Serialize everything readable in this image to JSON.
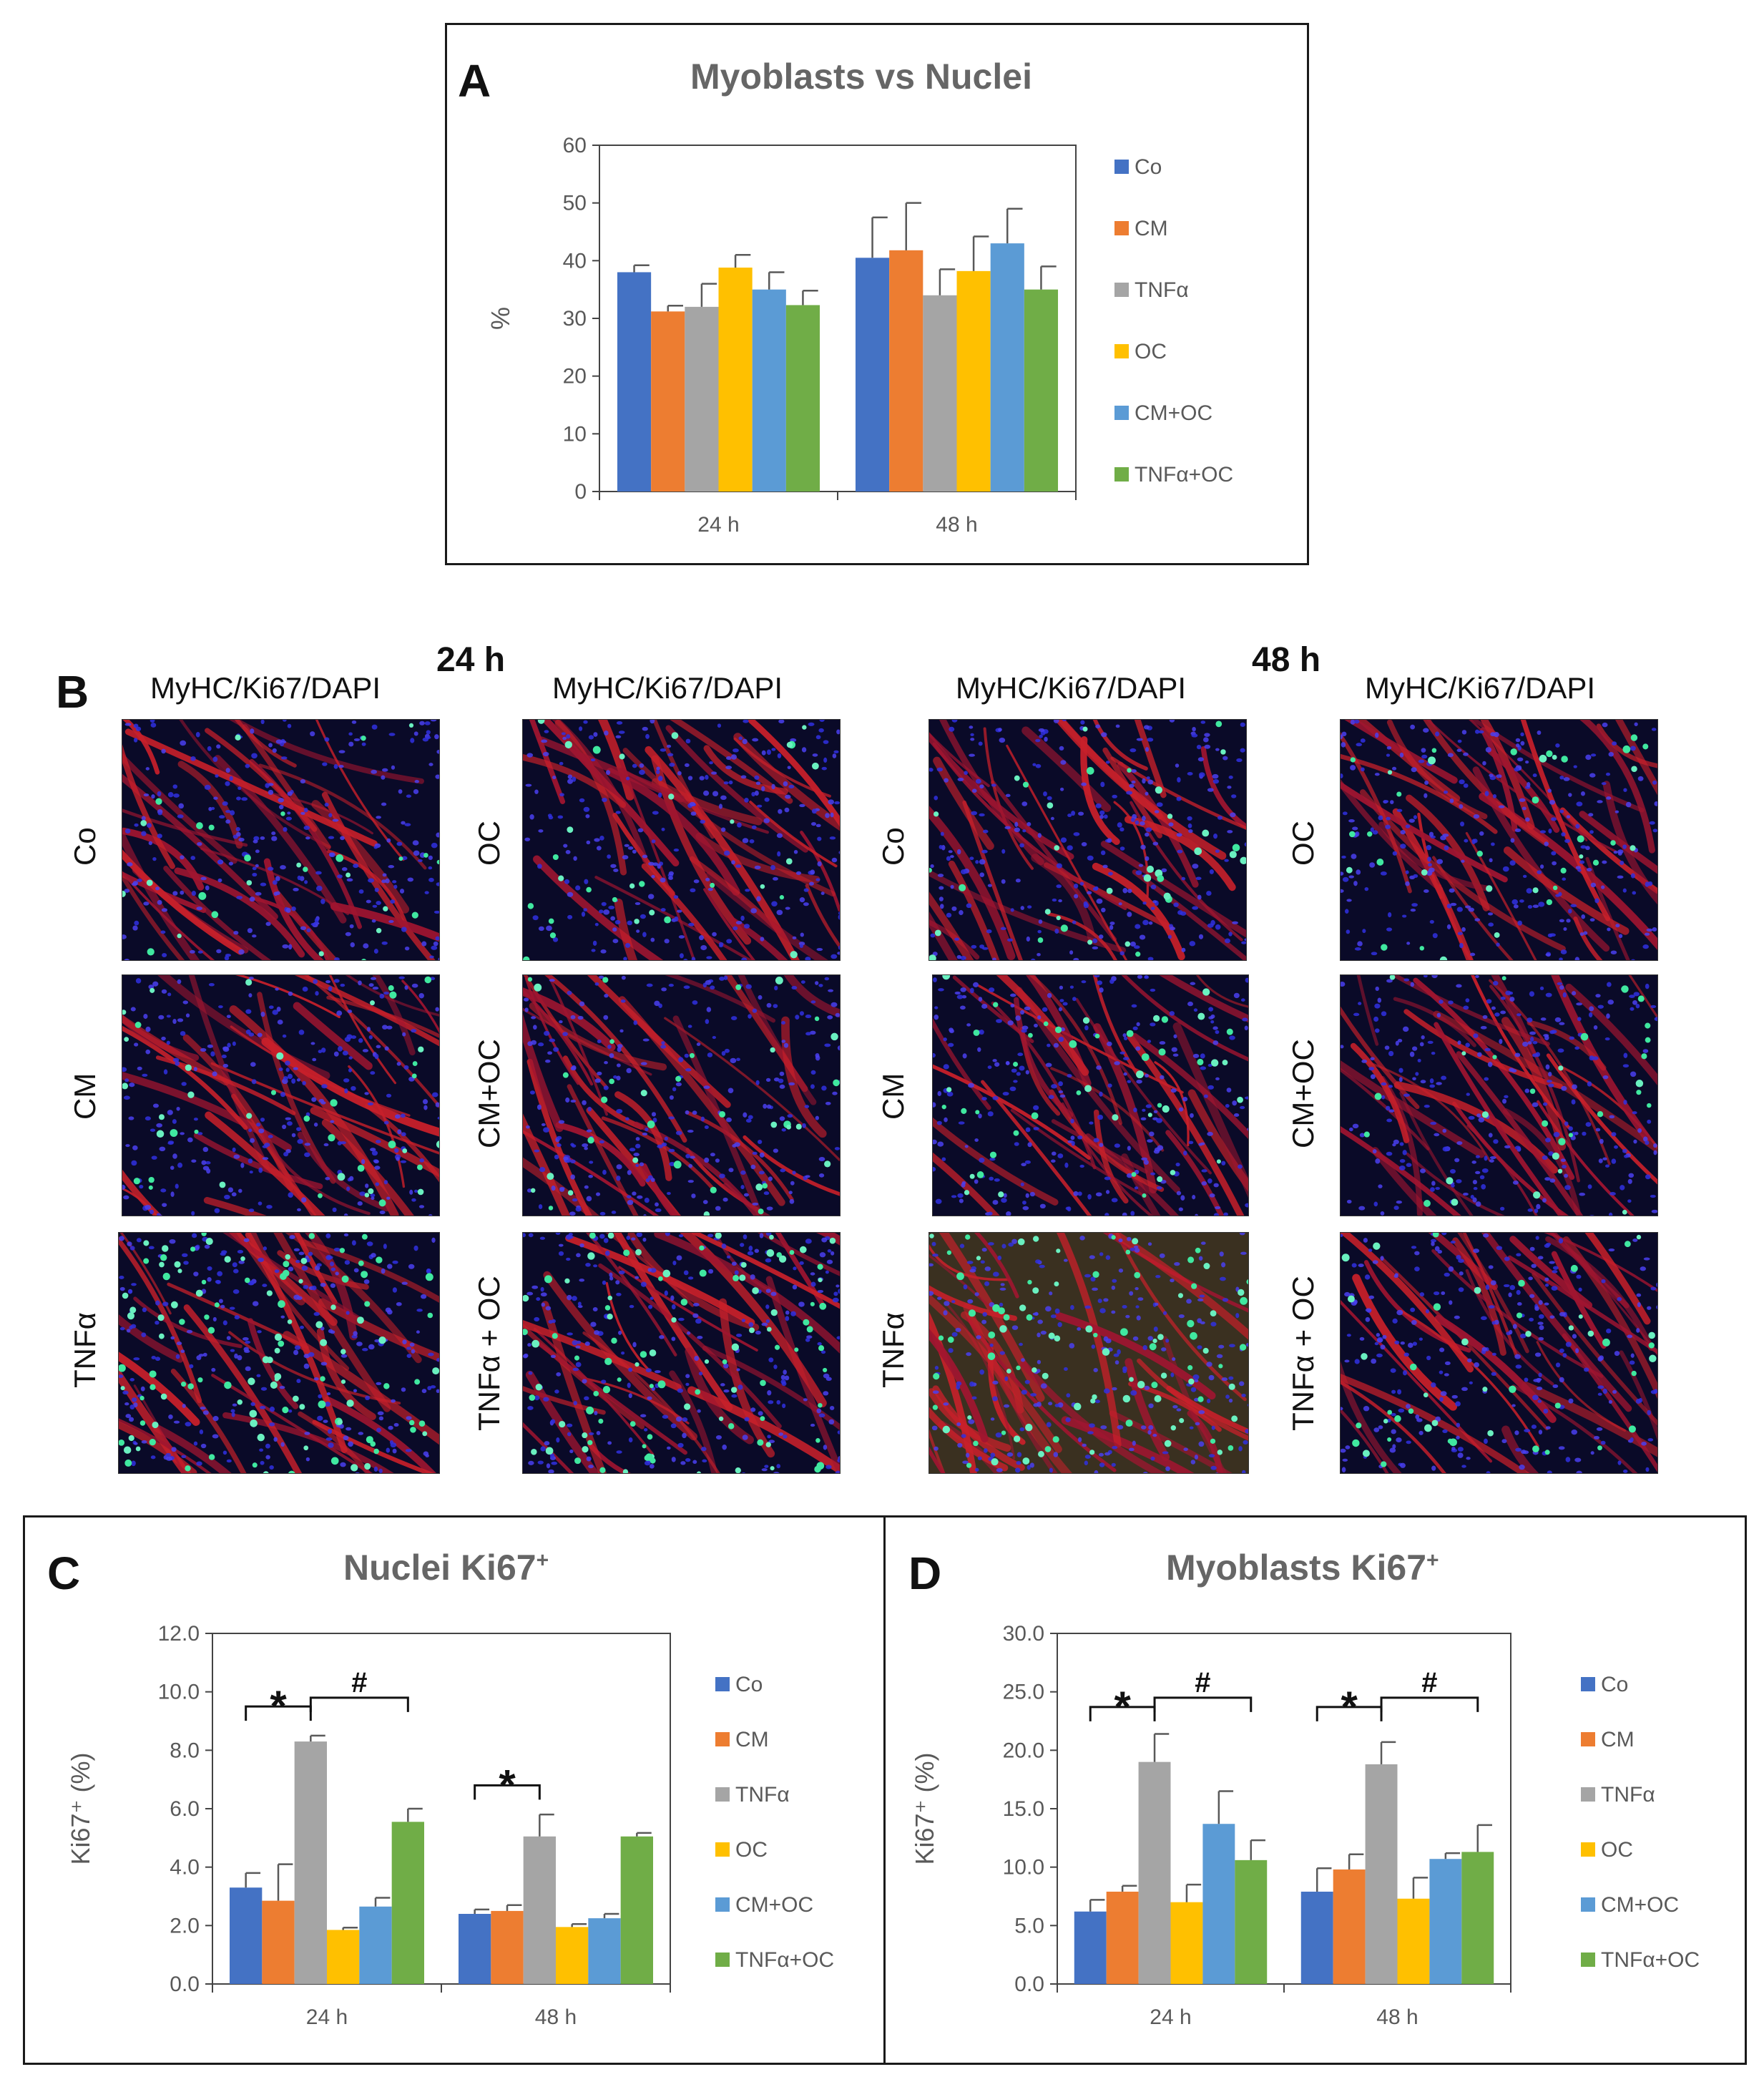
{
  "colors": {
    "Co": "#4472C4",
    "CM": "#ED7D31",
    "TNFα": "#A5A5A5",
    "OC": "#FFC000",
    "CM+OC": "#5B9BD5",
    "TNFα+OC": "#70AD47"
  },
  "panelA": {
    "letter": "A",
    "title": "Myoblasts vs Nuclei"
  },
  "panelB": {
    "letter": "B",
    "time_24": "24 h",
    "time_48": "48 h",
    "stain": "MyHC/Ki67/DAPI",
    "rows_left": [
      "Co",
      "CM",
      "TNFα"
    ],
    "rows_right": [
      "OC",
      "CM+OC",
      "TNFα + OC"
    ]
  },
  "panelC": {
    "letter": "C",
    "title": "Nuclei Ki67",
    "title_sup": "+"
  },
  "panelD": {
    "letter": "D",
    "title": "Myoblasts Ki67",
    "title_sup": "+"
  },
  "chart_data": [
    {
      "id": "A",
      "type": "bar",
      "title": "Myoblasts vs Nuclei",
      "xlabel": "",
      "ylabel": "%",
      "ylim": [
        0,
        60
      ],
      "yticks": [
        0,
        10,
        20,
        30,
        40,
        50,
        60
      ],
      "tick_decimals": 0,
      "categories": [
        "24 h",
        "48 h"
      ],
      "series": [
        {
          "name": "Co",
          "values": [
            38,
            40.5
          ],
          "errors": [
            1.2,
            7
          ]
        },
        {
          "name": "CM",
          "values": [
            31.2,
            41.8
          ],
          "errors": [
            1.0,
            8.2
          ]
        },
        {
          "name": "TNFα",
          "values": [
            32,
            34
          ],
          "errors": [
            4,
            4.5
          ]
        },
        {
          "name": "OC",
          "values": [
            38.8,
            38.2
          ],
          "errors": [
            2.2,
            6
          ]
        },
        {
          "name": "CM+OC",
          "values": [
            35,
            43
          ],
          "errors": [
            3,
            6
          ]
        },
        {
          "name": "TNFα+OC",
          "values": [
            32.3,
            35
          ],
          "errors": [
            2.5,
            4
          ]
        }
      ],
      "legend": "right",
      "annotations": []
    },
    {
      "id": "C",
      "type": "bar",
      "title": "Nuclei Ki67+",
      "xlabel": "",
      "ylabel": "Ki67⁺ (%)",
      "ylim": [
        0,
        12
      ],
      "yticks": [
        0,
        2,
        4,
        6,
        8,
        10,
        12
      ],
      "tick_decimals": 1,
      "categories": [
        "24 h",
        "48 h"
      ],
      "series": [
        {
          "name": "Co",
          "values": [
            3.3,
            2.4
          ],
          "errors": [
            0.5,
            0.15
          ]
        },
        {
          "name": "CM",
          "values": [
            2.85,
            2.5
          ],
          "errors": [
            1.25,
            0.2
          ]
        },
        {
          "name": "TNFα",
          "values": [
            8.3,
            5.05
          ],
          "errors": [
            0.2,
            0.75
          ]
        },
        {
          "name": "OC",
          "values": [
            1.85,
            1.95
          ],
          "errors": [
            0.08,
            0.1
          ]
        },
        {
          "name": "CM+OC",
          "values": [
            2.65,
            2.25
          ],
          "errors": [
            0.3,
            0.15
          ]
        },
        {
          "name": "TNFα+OC",
          "values": [
            5.55,
            5.05
          ],
          "errors": [
            0.45,
            0.12
          ]
        }
      ],
      "legend": "right",
      "annotations": [
        {
          "label": "*",
          "cat": 0,
          "from": 0,
          "to": 2,
          "y": 9.5
        },
        {
          "label": "#",
          "cat": 0,
          "from": 2,
          "to": 5,
          "y": 9.8
        },
        {
          "label": "*",
          "cat": 1,
          "from": 0,
          "to": 2,
          "y": 6.8
        }
      ]
    },
    {
      "id": "D",
      "type": "bar",
      "title": "Myoblasts Ki67+",
      "xlabel": "",
      "ylabel": "Ki67⁺ (%)",
      "ylim": [
        0,
        30
      ],
      "yticks": [
        0,
        5,
        10,
        15,
        20,
        25,
        30
      ],
      "tick_decimals": 1,
      "categories": [
        "24 h",
        "48 h"
      ],
      "series": [
        {
          "name": "Co",
          "values": [
            6.2,
            7.9
          ],
          "errors": [
            1.0,
            2.0
          ]
        },
        {
          "name": "CM",
          "values": [
            7.9,
            9.8
          ],
          "errors": [
            0.5,
            1.3
          ]
        },
        {
          "name": "TNFα",
          "values": [
            19,
            18.8
          ],
          "errors": [
            2.4,
            1.9
          ]
        },
        {
          "name": "OC",
          "values": [
            7.0,
            7.3
          ],
          "errors": [
            1.5,
            1.8
          ]
        },
        {
          "name": "CM+OC",
          "values": [
            13.7,
            10.7
          ],
          "errors": [
            2.8,
            0.5
          ]
        },
        {
          "name": "TNFα+OC",
          "values": [
            10.6,
            11.3
          ],
          "errors": [
            1.7,
            2.3
          ]
        }
      ],
      "legend": "right",
      "annotations": [
        {
          "label": "*",
          "cat": 0,
          "from": 0,
          "to": 2,
          "y": 23.7
        },
        {
          "label": "#",
          "cat": 0,
          "from": 2,
          "to": 5,
          "y": 24.5
        },
        {
          "label": "*",
          "cat": 1,
          "from": 0,
          "to": 2,
          "y": 23.7
        },
        {
          "label": "#",
          "cat": 1,
          "from": 2,
          "to": 5,
          "y": 24.5
        }
      ]
    }
  ]
}
